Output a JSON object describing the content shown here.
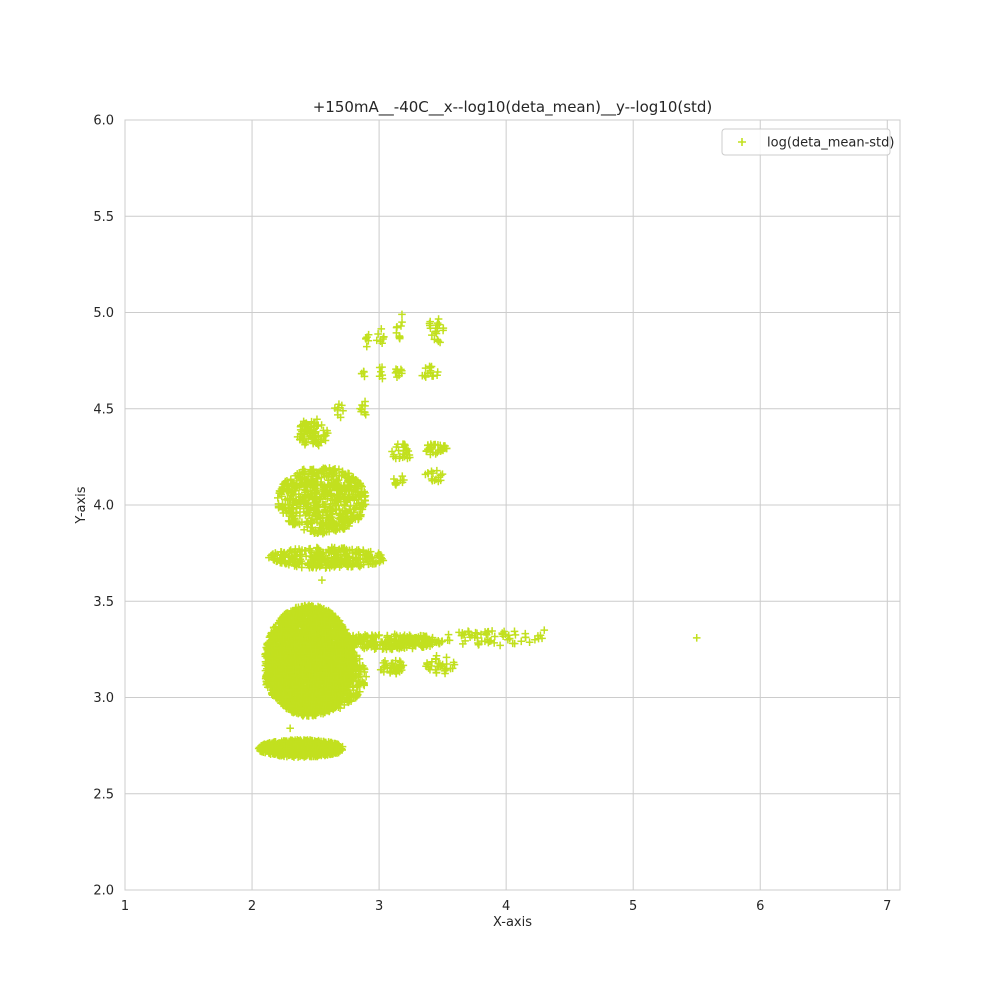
{
  "chart_data": {
    "type": "scatter",
    "title": "+150mA__-40C__x--log10(deta_mean)__y--log10(std)",
    "xlabel": "X-axis",
    "ylabel": "Y-axis",
    "xlim": [
      1,
      7.1
    ],
    "ylim": [
      2.0,
      6.0
    ],
    "xticks": [
      "1",
      "2",
      "3",
      "4",
      "5",
      "6",
      "7"
    ],
    "yticks": [
      "2.0",
      "2.5",
      "3.0",
      "3.5",
      "4.0",
      "4.5",
      "5.0",
      "5.5",
      "6.0"
    ],
    "grid": true,
    "legend_position": "top-right",
    "marker": "plus",
    "color": "#c2e01f",
    "series": [
      {
        "name": "log(deta_mean-std)",
        "clusters": [
          {
            "x": [
              2.05,
              2.72
            ],
            "y": [
              2.69,
              2.78
            ],
            "n": 700
          },
          {
            "x": [
              2.1,
              2.8
            ],
            "y": [
              2.9,
              3.48
            ],
            "n": 2600
          },
          {
            "x": [
              2.1,
              2.9
            ],
            "y": [
              2.92,
              3.3
            ],
            "n": 900
          },
          {
            "x": [
              2.6,
              3.5
            ],
            "y": [
              3.25,
              3.33
            ],
            "n": 260
          },
          {
            "x": [
              3.5,
              4.3
            ],
            "y": [
              3.27,
              3.35
            ],
            "n": 60
          },
          {
            "x": [
              3.0,
              3.2
            ],
            "y": [
              3.12,
              3.2
            ],
            "n": 40
          },
          {
            "x": [
              3.35,
              3.6
            ],
            "y": [
              3.12,
              3.22
            ],
            "n": 30
          },
          {
            "x": [
              2.12,
              3.05
            ],
            "y": [
              3.67,
              3.78
            ],
            "n": 320
          },
          {
            "x": [
              2.2,
              2.9
            ],
            "y": [
              3.85,
              4.2
            ],
            "n": 650
          },
          {
            "x": [
              2.35,
              2.6
            ],
            "y": [
              4.3,
              4.45
            ],
            "n": 80
          },
          {
            "x": [
              3.1,
              3.25
            ],
            "y": [
              4.22,
              4.32
            ],
            "n": 25
          },
          {
            "x": [
              3.35,
              3.55
            ],
            "y": [
              4.25,
              4.32
            ],
            "n": 30
          },
          {
            "x": [
              3.35,
              3.55
            ],
            "y": [
              4.12,
              4.18
            ],
            "n": 15
          },
          {
            "x": [
              3.1,
              3.2
            ],
            "y": [
              4.1,
              4.16
            ],
            "n": 10
          },
          {
            "x": [
              2.65,
              2.72
            ],
            "y": [
              4.45,
              4.55
            ],
            "n": 8
          },
          {
            "x": [
              2.85,
              2.92
            ],
            "y": [
              4.45,
              4.55
            ],
            "n": 10
          },
          {
            "x": [
              2.85,
              2.9
            ],
            "y": [
              4.65,
              4.7
            ],
            "n": 5
          },
          {
            "x": [
              2.98,
              3.04
            ],
            "y": [
              4.65,
              4.72
            ],
            "n": 6
          },
          {
            "x": [
              3.1,
              3.2
            ],
            "y": [
              4.66,
              4.72
            ],
            "n": 10
          },
          {
            "x": [
              3.32,
              3.48
            ],
            "y": [
              4.66,
              4.72
            ],
            "n": 15
          },
          {
            "x": [
              2.88,
              2.92
            ],
            "y": [
              4.82,
              4.92
            ],
            "n": 6
          },
          {
            "x": [
              2.98,
              3.04
            ],
            "y": [
              4.82,
              4.92
            ],
            "n": 8
          },
          {
            "x": [
              3.13,
              3.2
            ],
            "y": [
              4.84,
              4.98
            ],
            "n": 10
          },
          {
            "x": [
              3.38,
              3.52
            ],
            "y": [
              4.82,
              4.98
            ],
            "n": 20
          }
        ],
        "points": [
          [
            5.5,
            3.31
          ],
          [
            2.3,
            2.84
          ],
          [
            2.55,
            3.61
          ],
          [
            4.3,
            3.35
          ],
          [
            4.25,
            3.32
          ],
          [
            3.18,
            4.99
          ]
        ]
      }
    ]
  }
}
